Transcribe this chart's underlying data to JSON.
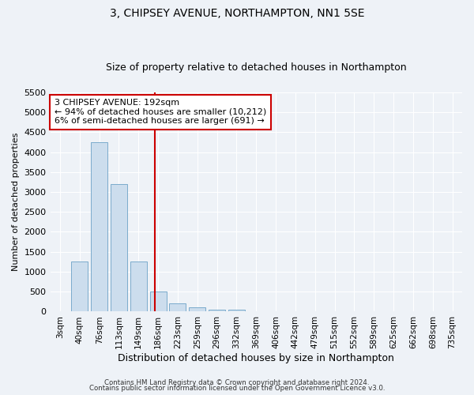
{
  "title": "3, CHIPSEY AVENUE, NORTHAMPTON, NN1 5SE",
  "subtitle": "Size of property relative to detached houses in Northampton",
  "xlabel": "Distribution of detached houses by size in Northampton",
  "ylabel": "Number of detached properties",
  "categories": [
    "3sqm",
    "40sqm",
    "76sqm",
    "113sqm",
    "149sqm",
    "186sqm",
    "223sqm",
    "259sqm",
    "296sqm",
    "332sqm",
    "369sqm",
    "406sqm",
    "442sqm",
    "479sqm",
    "515sqm",
    "552sqm",
    "589sqm",
    "625sqm",
    "662sqm",
    "698sqm",
    "735sqm"
  ],
  "bar_heights": [
    0,
    1250,
    4250,
    3200,
    1250,
    500,
    200,
    100,
    55,
    50,
    0,
    0,
    0,
    0,
    0,
    0,
    0,
    0,
    0,
    0,
    0
  ],
  "bar_color": "#ccdded",
  "bar_edge_color": "#7aabcc",
  "ylim": [
    0,
    5500
  ],
  "yticks": [
    0,
    500,
    1000,
    1500,
    2000,
    2500,
    3000,
    3500,
    4000,
    4500,
    5000,
    5500
  ],
  "red_line_index": 4.83,
  "annotation_line1": "3 CHIPSEY AVENUE: 192sqm",
  "annotation_line2": "← 94% of detached houses are smaller (10,212)",
  "annotation_line3": "6% of semi-detached houses are larger (691) →",
  "annotation_box_color": "#ffffff",
  "annotation_box_edge_color": "#cc0000",
  "footer_line1": "Contains HM Land Registry data © Crown copyright and database right 2024.",
  "footer_line2": "Contains public sector information licensed under the Open Government Licence v3.0.",
  "bg_color": "#eef2f7",
  "grid_color": "#ffffff",
  "title_fontsize": 10,
  "subtitle_fontsize": 9,
  "tick_fontsize": 7.5,
  "ylabel_fontsize": 8,
  "xlabel_fontsize": 9
}
